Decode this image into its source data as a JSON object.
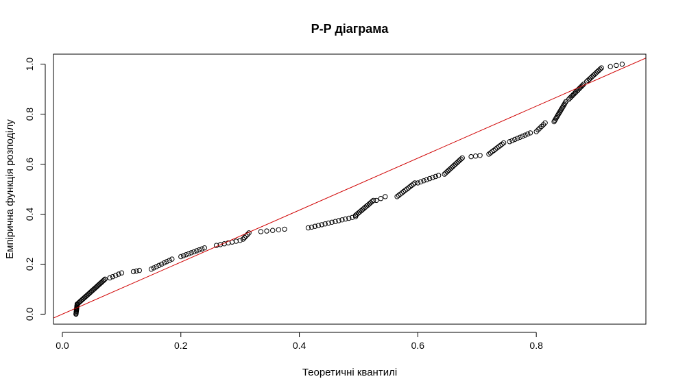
{
  "chart_data": {
    "type": "scatter",
    "title": "P-P діаграма",
    "xlabel": "Теоретичні квантилі",
    "ylabel": "Емпірична функція розподілу",
    "xlim": [
      -0.015,
      0.985
    ],
    "ylim": [
      -0.04,
      1.04
    ],
    "xticks": [
      0.0,
      0.2,
      0.4,
      0.6,
      0.8
    ],
    "xtick_labels": [
      "0.0",
      "0.2",
      "0.4",
      "0.6",
      "0.8"
    ],
    "yticks": [
      0.0,
      0.2,
      0.4,
      0.6,
      0.8,
      1.0
    ],
    "ytick_labels": [
      "0.0",
      "0.2",
      "0.4",
      "0.6",
      "0.8",
      "1.0"
    ],
    "grid": false,
    "marker": "open-circle",
    "colors": {
      "points": "#000000",
      "reference_line": "#d00000"
    },
    "reference_line": {
      "intercept": 0,
      "slope": 1.04
    },
    "segments": [
      {
        "x": [
          0.023,
          0.025
        ],
        "y": [
          0.0,
          0.04
        ],
        "n": 12
      },
      {
        "x": [
          0.025,
          0.072
        ],
        "y": [
          0.04,
          0.14
        ],
        "n": 30
      },
      {
        "x": [
          0.08,
          0.1
        ],
        "y": [
          0.145,
          0.165
        ],
        "n": 5
      },
      {
        "x": [
          0.12,
          0.13
        ],
        "y": [
          0.17,
          0.175
        ],
        "n": 3
      },
      {
        "x": [
          0.15,
          0.185
        ],
        "y": [
          0.18,
          0.22
        ],
        "n": 9
      },
      {
        "x": [
          0.2,
          0.24
        ],
        "y": [
          0.23,
          0.265
        ],
        "n": 10
      },
      {
        "x": [
          0.26,
          0.3
        ],
        "y": [
          0.275,
          0.295
        ],
        "n": 7
      },
      {
        "x": [
          0.305,
          0.315
        ],
        "y": [
          0.3,
          0.325
        ],
        "n": 5
      },
      {
        "x": [
          0.335,
          0.375
        ],
        "y": [
          0.33,
          0.34
        ],
        "n": 5
      },
      {
        "x": [
          0.415,
          0.495
        ],
        "y": [
          0.345,
          0.39
        ],
        "n": 15
      },
      {
        "x": [
          0.495,
          0.525
        ],
        "y": [
          0.395,
          0.455
        ],
        "n": 14
      },
      {
        "x": [
          0.53,
          0.545
        ],
        "y": [
          0.455,
          0.47
        ],
        "n": 3
      },
      {
        "x": [
          0.565,
          0.595
        ],
        "y": [
          0.47,
          0.525
        ],
        "n": 12
      },
      {
        "x": [
          0.6,
          0.635
        ],
        "y": [
          0.525,
          0.555
        ],
        "n": 8
      },
      {
        "x": [
          0.645,
          0.675
        ],
        "y": [
          0.56,
          0.625
        ],
        "n": 14
      },
      {
        "x": [
          0.69,
          0.705
        ],
        "y": [
          0.63,
          0.635
        ],
        "n": 3
      },
      {
        "x": [
          0.72,
          0.745
        ],
        "y": [
          0.64,
          0.685
        ],
        "n": 10
      },
      {
        "x": [
          0.755,
          0.79
        ],
        "y": [
          0.69,
          0.725
        ],
        "n": 9
      },
      {
        "x": [
          0.8,
          0.815
        ],
        "y": [
          0.73,
          0.765
        ],
        "n": 6
      },
      {
        "x": [
          0.83,
          0.85
        ],
        "y": [
          0.77,
          0.85
        ],
        "n": 16
      },
      {
        "x": [
          0.855,
          0.88
        ],
        "y": [
          0.86,
          0.92
        ],
        "n": 14
      },
      {
        "x": [
          0.885,
          0.91
        ],
        "y": [
          0.93,
          0.985
        ],
        "n": 12
      },
      {
        "x": [
          0.925,
          0.945
        ],
        "y": [
          0.99,
          1.0
        ],
        "n": 3
      }
    ]
  }
}
